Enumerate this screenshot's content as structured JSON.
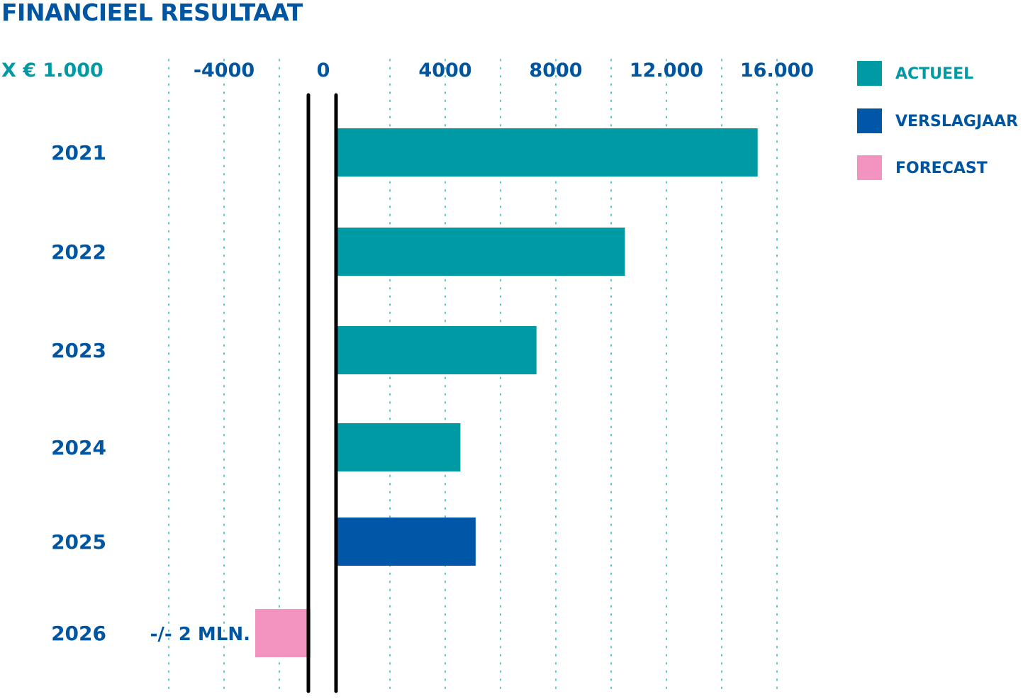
{
  "chart_data": {
    "type": "bar",
    "orientation": "horizontal",
    "title": "FINANCIEEL RESULTAAT",
    "unit_label": "X € 1.000",
    "x_ticks": [
      -4000,
      0,
      4000,
      8000,
      12000,
      16000
    ],
    "x_tick_labels": [
      "-4000",
      "0",
      "4000",
      "8000",
      "12.000",
      "16.000"
    ],
    "xlim": [
      -4000,
      16000
    ],
    "grid": "dotted vertical",
    "legend_position": "right",
    "categories": [
      "2021",
      "2022",
      "2023",
      "2024",
      "2025",
      "2026"
    ],
    "values": [
      15300,
      10500,
      7300,
      4550,
      5100,
      -2000
    ],
    "bar_types": [
      "actueel",
      "actueel",
      "actueel",
      "actueel",
      "verslagjaar",
      "forecast"
    ],
    "annotations": [
      {
        "category": "2026",
        "text": "-/- 2 MLN."
      }
    ],
    "legend": [
      {
        "key": "actueel",
        "label": "ACTUEEL",
        "color": "#009aa5",
        "text_color": "#009aa5"
      },
      {
        "key": "verslagjaar",
        "label": "VERSLAGJAAR",
        "color": "#0057a8",
        "text_color": "#0055a0"
      },
      {
        "key": "forecast",
        "label": "FORECAST",
        "color": "#f293c0",
        "text_color": "#0055a0"
      }
    ]
  },
  "colors": {
    "title": "#0055a0",
    "unit_label": "#009aa5",
    "ticks": "#0055a0",
    "categories": "#0055a0",
    "grid": "#5cc8c4",
    "axis": "#000000"
  }
}
